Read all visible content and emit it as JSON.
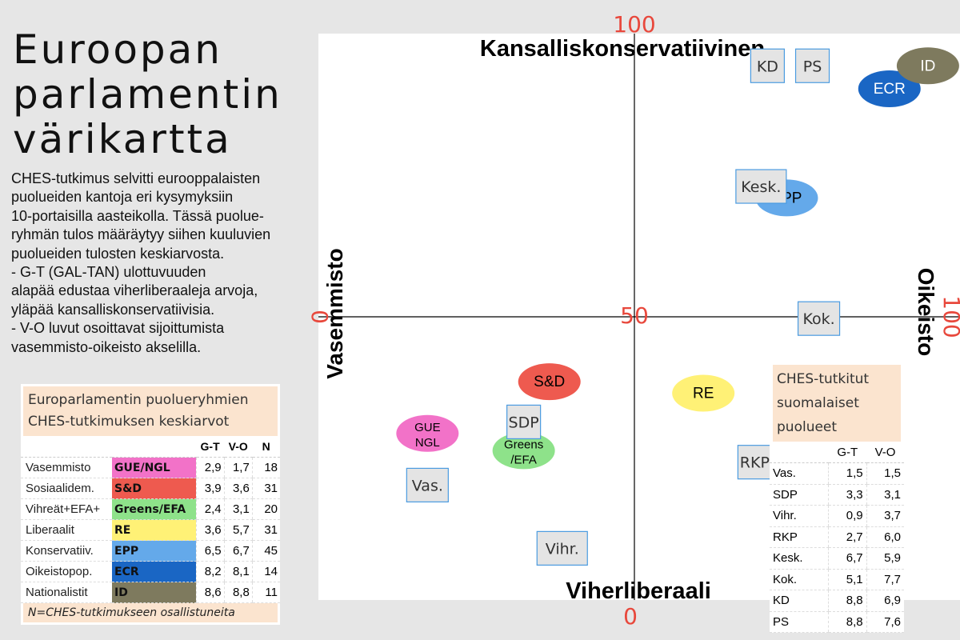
{
  "title": "Euroopan parlamentin värikartta",
  "description": "CHES-tutkimus selvitti eurooppalaisten\npuolueiden kantoja eri kysymyksiin\n10-portaisilla aasteikolla. Tässä puolue-\nryhmän tulos määräytyy siihen kuuluvien\npuolueiden tulosten keskiarvosta.\n- G-T (GAL-TAN) ulottuvuuden\nalapää edustaa viherliberaaleja arvoja,\nyläpää kansalliskonservatiivisia.\n- V-O luvut osoittavat sijoittumista\nvasemmisto-oikeisto akselilla.",
  "chart_data": {
    "type": "scatter",
    "axis_labels": {
      "top": "Kansalliskonservatiivinen",
      "bottom": "Viherliberaali",
      "left": "Vasemmisto",
      "right": "Oikeisto"
    },
    "tick_labels": {
      "x_min": "0",
      "x_max": "100",
      "y_min": "0",
      "y_max": "100",
      "center": "50"
    },
    "xlim": [
      0,
      100
    ],
    "ylim": [
      0,
      100
    ],
    "grid": false,
    "groups": [
      {
        "label": "GUE\nNGL",
        "x": 17,
        "y": 29,
        "color": "#f272c8",
        "text_color": "#000000"
      },
      {
        "label": "S&D",
        "x": 36,
        "y": 38,
        "color": "#ee5a4f",
        "text_color": "#000000"
      },
      {
        "label": "Greens\n/EFA",
        "x": 32,
        "y": 26,
        "color": "#8ee28a",
        "text_color": "#000000"
      },
      {
        "label": "RE",
        "x": 60,
        "y": 36,
        "color": "#fff176",
        "text_color": "#000000"
      },
      {
        "label": "EPP",
        "x": 73,
        "y": 70,
        "color": "#64a9ea",
        "text_color": "#000000"
      },
      {
        "label": "ECR",
        "x": 89,
        "y": 89,
        "color": "#1a66c4",
        "text_color": "#ffffff"
      },
      {
        "label": "ID",
        "x": 95,
        "y": 93,
        "color": "#7e7a5e",
        "text_color": "#ffffff"
      }
    ],
    "finnish_parties": [
      {
        "label": "Vas.",
        "x": 17,
        "y": 20
      },
      {
        "label": "SDP",
        "x": 32,
        "y": 31
      },
      {
        "label": "Vihr.",
        "x": 38,
        "y": 9
      },
      {
        "label": "RKP",
        "x": 68,
        "y": 24
      },
      {
        "label": "Kesk.",
        "x": 69,
        "y": 72
      },
      {
        "label": "Kok.",
        "x": 78,
        "y": 49
      },
      {
        "label": "KD",
        "x": 70,
        "y": 93
      },
      {
        "label": "PS",
        "x": 77,
        "y": 93
      }
    ]
  },
  "group_table": {
    "heading": "Europarlamentin puolueryhmien CHES-tutkimuksen keskiarvot",
    "columns": [
      "G-T",
      "V-O",
      "N"
    ],
    "rows": [
      {
        "category": "Vasemmisto",
        "group": "GUE/NGL",
        "color": "#f272c8",
        "gt": "2,9",
        "vo": "1,7",
        "n": "18"
      },
      {
        "category": "Sosiaalidem.",
        "group": "S&D",
        "color": "#ee5a4f",
        "gt": "3,9",
        "vo": "3,6",
        "n": "31"
      },
      {
        "category": "Vihreät+EFA+",
        "group": "Greens/EFA",
        "color": "#8ee28a",
        "gt": "2,4",
        "vo": "3,1",
        "n": "20"
      },
      {
        "category": "Liberaalit",
        "group": "RE",
        "color": "#fff176",
        "gt": "3,6",
        "vo": "5,7",
        "n": "31"
      },
      {
        "category": "Konservatiiv.",
        "group": "EPP",
        "color": "#64a9ea",
        "gt": "6,5",
        "vo": "6,7",
        "n": "45"
      },
      {
        "category": "Oikeistopop.",
        "group": "ECR",
        "color": "#1a66c4",
        "gt": "8,2",
        "vo": "8,1",
        "n": "14"
      },
      {
        "category": "Nationalistit",
        "group": "ID",
        "color": "#7e7a5e",
        "gt": "8,6",
        "vo": "8,8",
        "n": "11"
      }
    ],
    "footnote": "N=CHES-tutkimukseen osallistuneita"
  },
  "finnish_table": {
    "heading": "CHES-tutkitut suomalaiset puolueet",
    "columns": [
      "G-T",
      "V-O"
    ],
    "rows": [
      {
        "party": "Vas.",
        "gt": "1,5",
        "vo": "1,5"
      },
      {
        "party": "SDP",
        "gt": "3,3",
        "vo": "3,1"
      },
      {
        "party": "Vihr.",
        "gt": "0,9",
        "vo": "3,7"
      },
      {
        "party": "RKP",
        "gt": "2,7",
        "vo": "6,0"
      },
      {
        "party": "Kesk.",
        "gt": "6,7",
        "vo": "5,9"
      },
      {
        "party": "Kok.",
        "gt": "5,1",
        "vo": "7,7"
      },
      {
        "party": "KD",
        "gt": "8,8",
        "vo": "6,9"
      },
      {
        "party": "PS",
        "gt": "8,8",
        "vo": "7,6"
      }
    ]
  }
}
